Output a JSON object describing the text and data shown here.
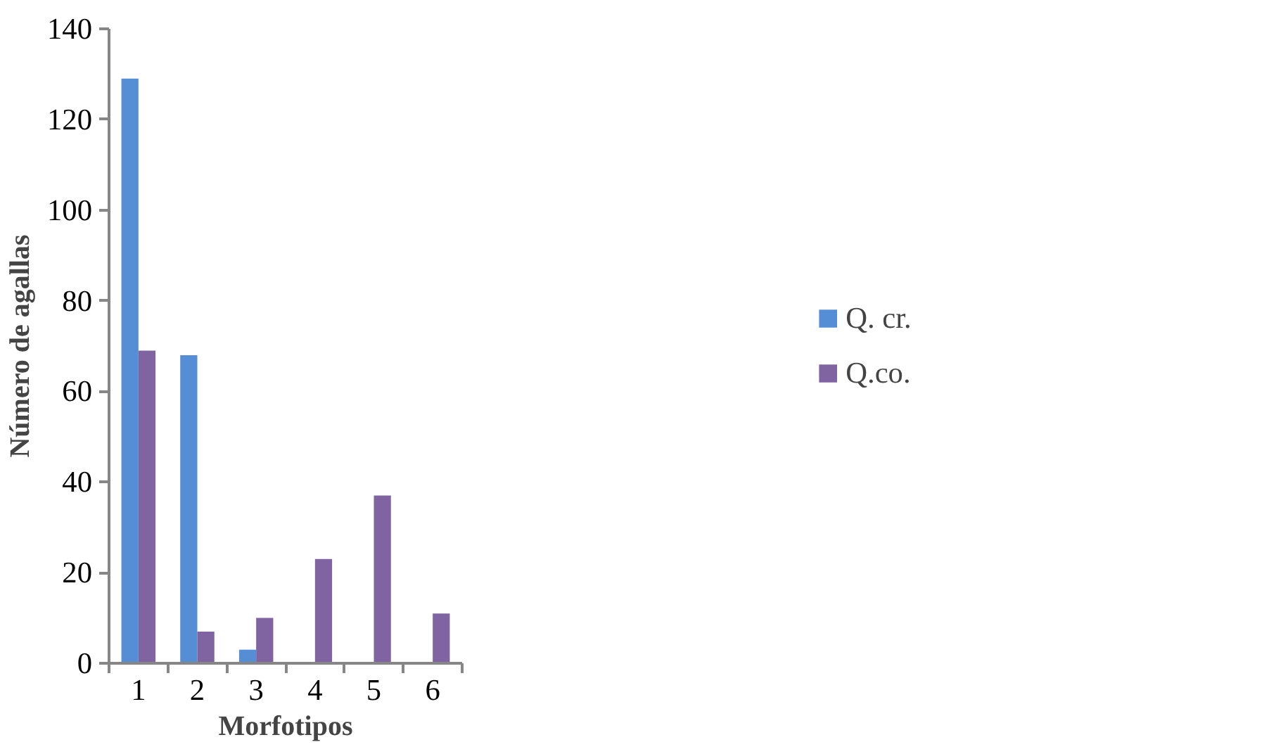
{
  "chart_data": {
    "type": "bar",
    "xlabel": "Morfotipos",
    "ylabel": "Número de agallas",
    "categories": [
      "1",
      "2",
      "3",
      "4",
      "5",
      "6"
    ],
    "series": [
      {
        "name": "Q. cr.",
        "color": "#558ed5",
        "values": [
          129,
          68,
          3,
          0,
          0,
          0
        ]
      },
      {
        "name": "Q.co.",
        "color": "#8064a2",
        "values": [
          69,
          7,
          10,
          23,
          37,
          11
        ]
      }
    ],
    "ylim": [
      0,
      140
    ],
    "yticks": [
      0,
      20,
      40,
      60,
      80,
      100,
      120,
      140
    ],
    "grid": false,
    "legend": "right"
  }
}
